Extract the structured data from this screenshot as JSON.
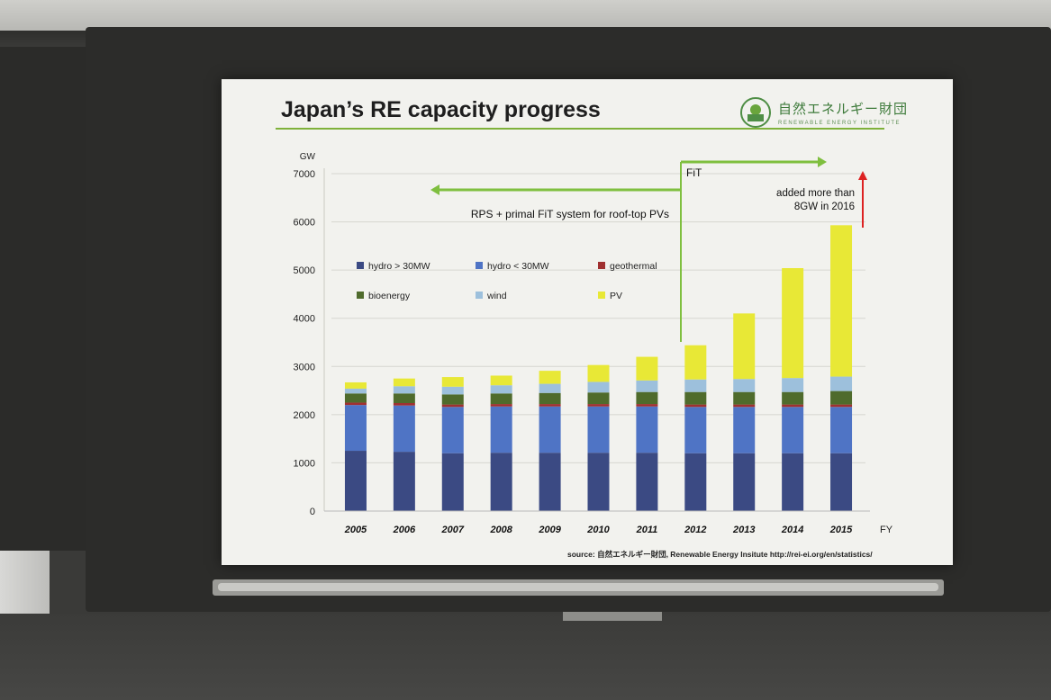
{
  "slide": {
    "title": "Japan’s RE capacity progress",
    "logo_jp": "自然エネルギー財団",
    "logo_en": "RENEWABLE ENERGY INSTITUTE",
    "source": "source: 自然エネルギー財団, Renewable Energy Insitute  http://rei-ei.org/en/statistics/"
  },
  "annotations": {
    "fit_label": "FiT",
    "rps_label": "RPS + primal FiT system for roof-top PVs",
    "added_line1": "added more than",
    "added_line2": "8GW in 2016"
  },
  "colors": {
    "hydro_large": "#3b4a83",
    "hydro_small": "#4f74c5",
    "geothermal": "#a03030",
    "bioenergy": "#4f6b2c",
    "wind": "#9dc0dc",
    "pv": "#e8e836",
    "arrow_green": "#7fbf3f",
    "arrow_red": "#d22"
  },
  "chart_data": {
    "type": "bar",
    "stacked": true,
    "ylabel": "GW",
    "xlabel": "FY",
    "ylim": [
      0,
      7000
    ],
    "yticks": [
      0,
      1000,
      2000,
      3000,
      4000,
      5000,
      6000,
      7000
    ],
    "categories": [
      "2005",
      "2006",
      "2007",
      "2008",
      "2009",
      "2010",
      "2011",
      "2012",
      "2013",
      "2014",
      "2015"
    ],
    "legend_position": "top-left",
    "series": [
      {
        "name": "hydro > 30MW",
        "color_key": "hydro_large",
        "values": [
          1250,
          1230,
          1200,
          1210,
          1210,
          1210,
          1210,
          1200,
          1200,
          1200,
          1200
        ]
      },
      {
        "name": "hydro < 30MW",
        "color_key": "hydro_small",
        "values": [
          950,
          960,
          960,
          960,
          960,
          960,
          960,
          960,
          960,
          960,
          960
        ]
      },
      {
        "name": "geothermal",
        "color_key": "geothermal",
        "values": [
          50,
          50,
          50,
          50,
          50,
          50,
          50,
          50,
          50,
          50,
          50
        ]
      },
      {
        "name": "bioenergy",
        "color_key": "bioenergy",
        "values": [
          190,
          200,
          210,
          220,
          230,
          240,
          250,
          260,
          260,
          260,
          280
        ]
      },
      {
        "name": "wind",
        "color_key": "wind",
        "values": [
          100,
          150,
          160,
          170,
          190,
          220,
          240,
          260,
          270,
          290,
          300
        ]
      },
      {
        "name": "PV",
        "color_key": "pv",
        "values": [
          130,
          160,
          200,
          200,
          270,
          350,
          490,
          710,
          1360,
          2280,
          3140
        ]
      }
    ]
  }
}
